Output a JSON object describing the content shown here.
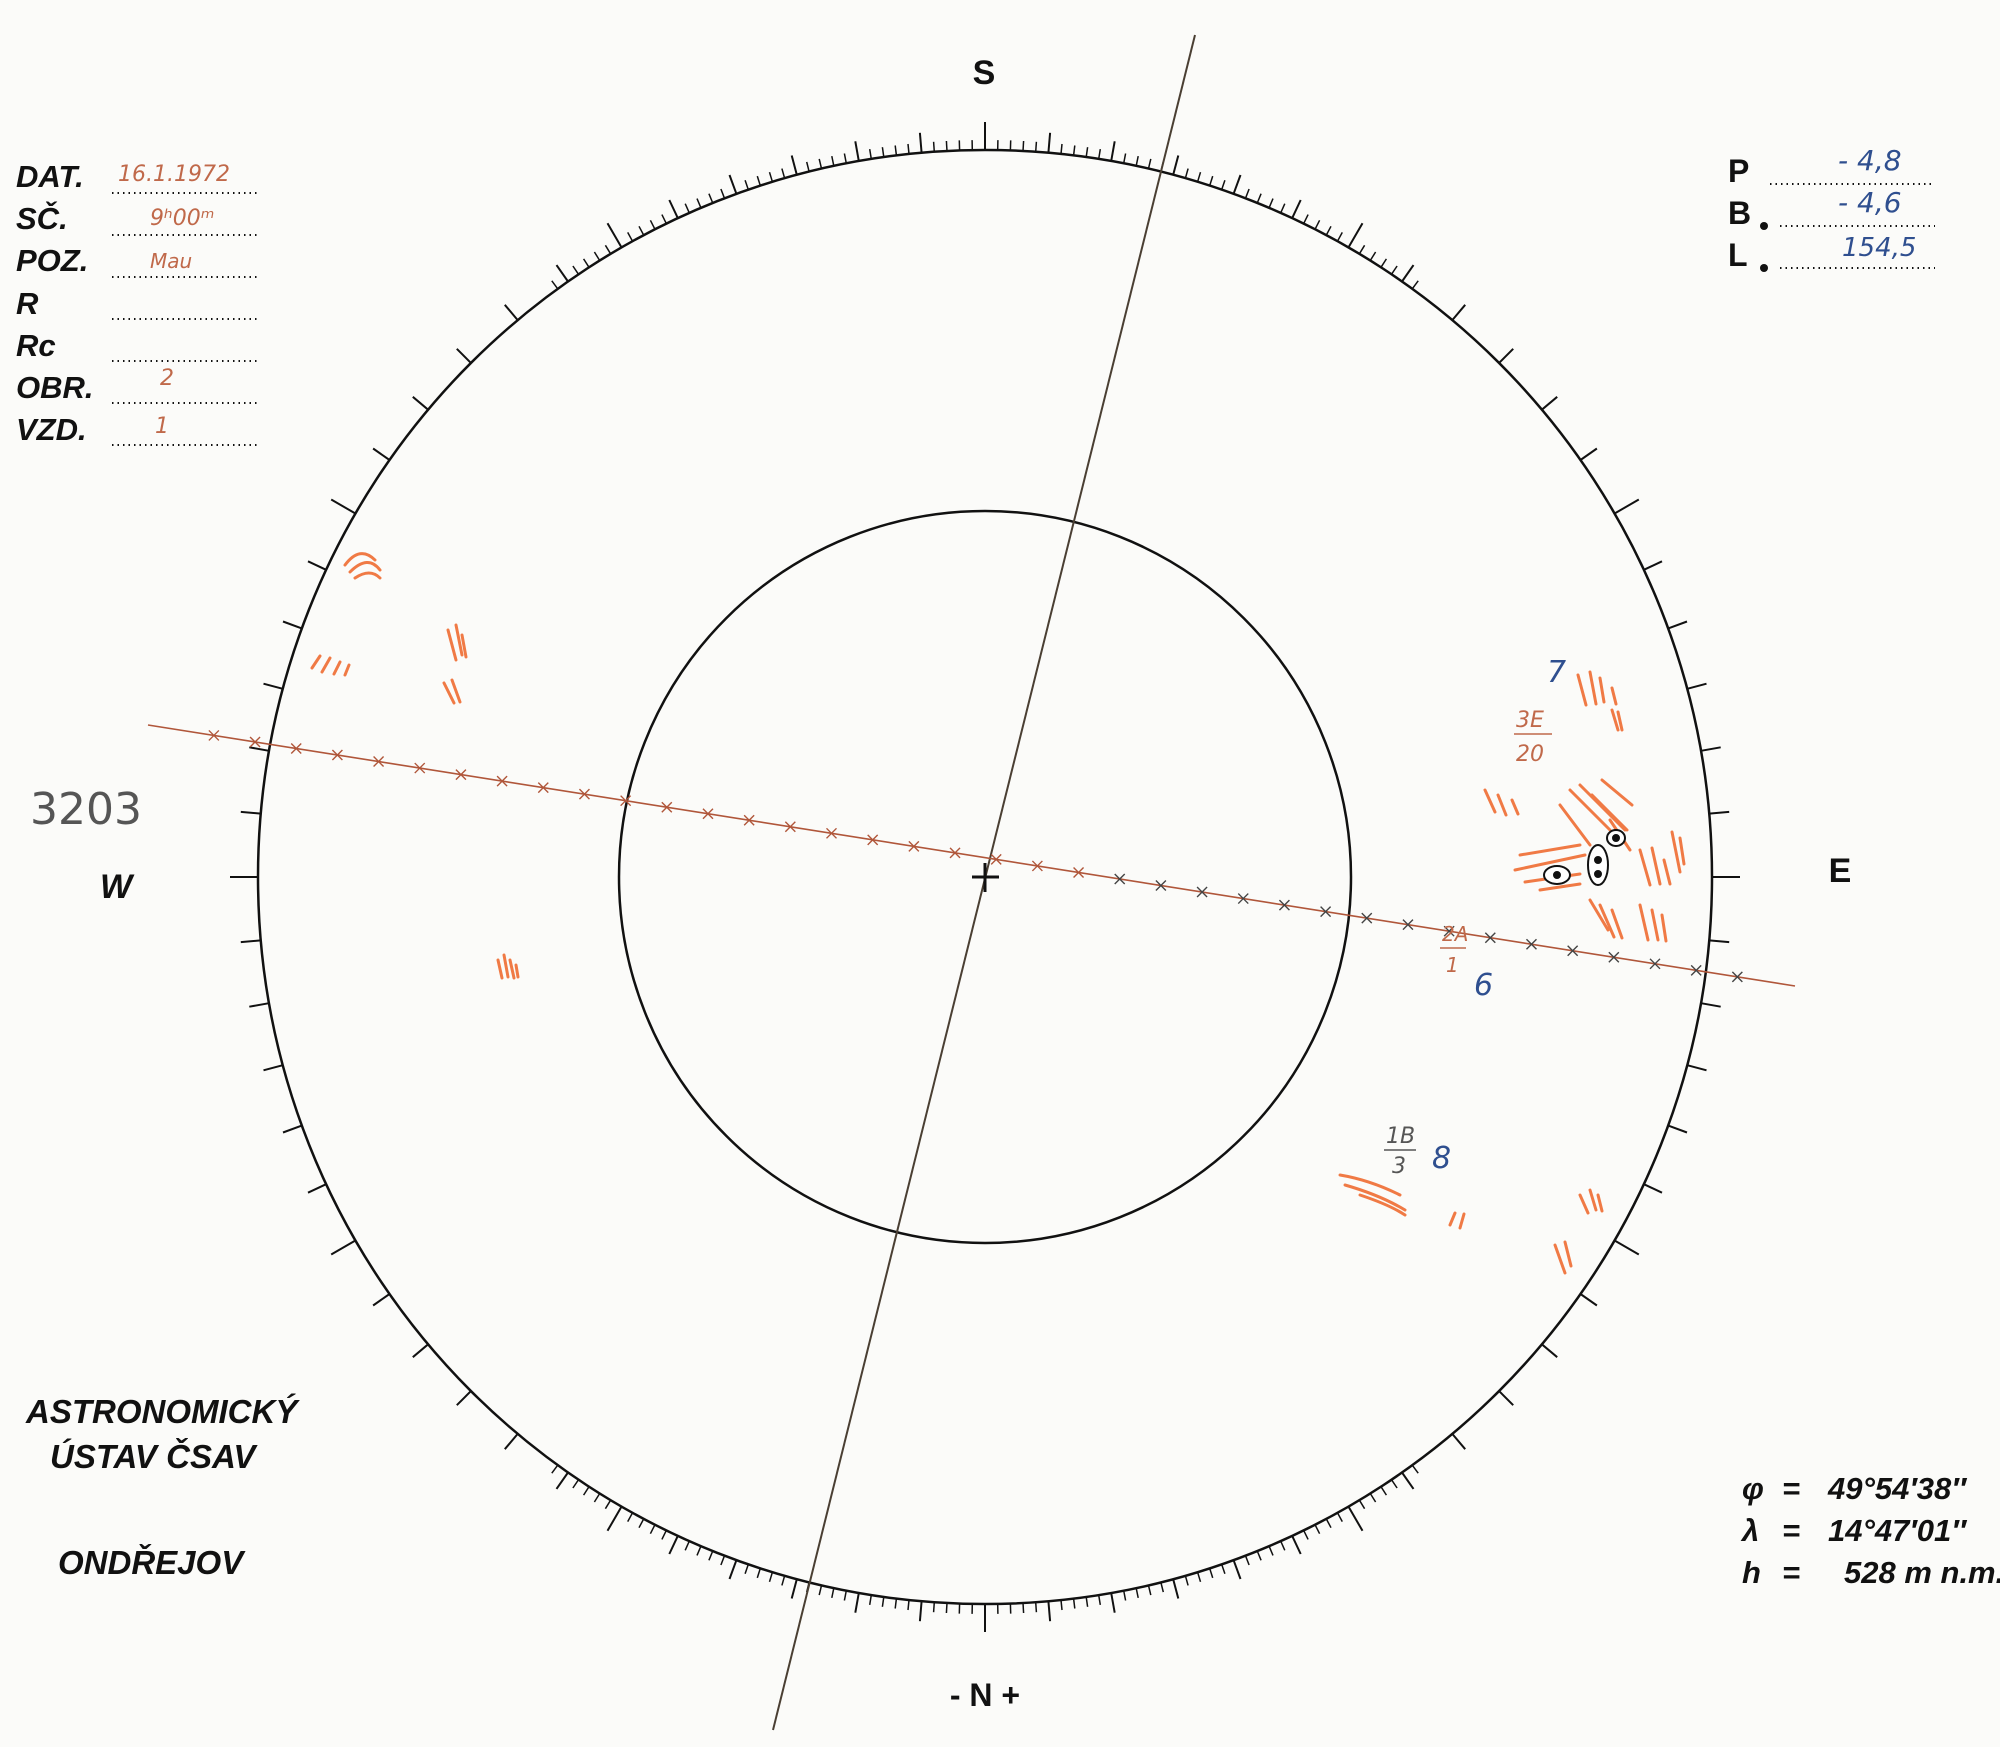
{
  "compass": {
    "south": "S",
    "north": "- N +",
    "west": "W",
    "east": "E"
  },
  "header_left": [
    {
      "label": "DAT.",
      "value": "16.1.1972"
    },
    {
      "label": "SČ.",
      "value": "9ʰ00ᵐ"
    },
    {
      "label": "POZ.",
      "value": "Mau"
    },
    {
      "label": "R",
      "value": ""
    },
    {
      "label": "Rc",
      "value": ""
    },
    {
      "label": "OBR.",
      "value": "2"
    },
    {
      "label": "VZD.",
      "value": "1"
    }
  ],
  "header_right": [
    {
      "label": "P",
      "value": "- 4,8"
    },
    {
      "label": "B",
      "value": "- 4,6"
    },
    {
      "label": "L",
      "value": "154,5"
    }
  ],
  "drawing_number": "3203",
  "observatory": {
    "line1": "ASTRONOMICKÝ",
    "line2": "ÚSTAV ČSAV",
    "location": "ONDŘEJOV"
  },
  "coordinates": [
    {
      "label": "φ",
      "eq": "=",
      "value": "49°54′38″"
    },
    {
      "label": "λ",
      "eq": "=",
      "value": "14°47′01″"
    },
    {
      "label": "h",
      "eq": "=",
      "value": "528 m n.m."
    }
  ],
  "regions": [
    {
      "number": "7",
      "class": "3E",
      "area": "20"
    },
    {
      "number": "6",
      "class": "2A",
      "area": "1"
    },
    {
      "number": "8",
      "class": "1B",
      "area": "3"
    }
  ],
  "colors": {
    "ink": "#111111",
    "plage": "#f07a45",
    "pencil_red": "#c0694a",
    "pen_blue": "#2f4f8f"
  }
}
